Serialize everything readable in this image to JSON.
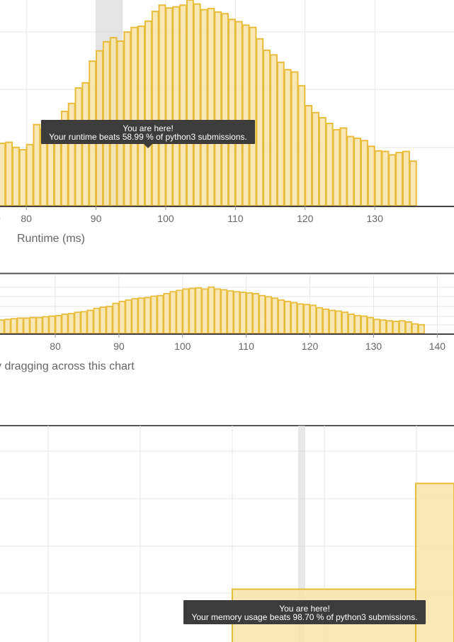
{
  "chart_data": [
    {
      "type": "bar",
      "xlabel": "Runtime (ms)",
      "xlim": [
        75.5,
        136
      ],
      "ylim": [
        0,
        36
      ],
      "highlight_x": 91,
      "colors": {
        "bar_fill": "#f8e3a8",
        "bar_stroke": "#e8bd3c",
        "highlight": "#d8d8d8",
        "grid": "#e6e6e6"
      },
      "x_ticks": [
        80,
        90,
        100,
        110,
        120,
        130
      ],
      "tick_labels": [
        "80",
        "90",
        "100",
        "110",
        "120",
        "130"
      ],
      "x": [
        75.5,
        76.5,
        77.5,
        78.5,
        79.5,
        80.5,
        81.5,
        82.5,
        83.5,
        84.5,
        85.5,
        86.5,
        87.5,
        88.5,
        89.5,
        90.5,
        91.5,
        92.5,
        93.5,
        94.5,
        95.5,
        96.5,
        97.5,
        98.5,
        99.5,
        100.5,
        101.5,
        102.5,
        103.5,
        104.5,
        105.5,
        106.5,
        107.5,
        108.5,
        109.5,
        110.5,
        111.5,
        112.5,
        113.5,
        114.5,
        115.5,
        116.5,
        117.5,
        118.5,
        119.5,
        120.5,
        121.5,
        122.5,
        123.5,
        124.5,
        125.5,
        126.5,
        127.5,
        128.5,
        129.5,
        130.5,
        131.5,
        132.5,
        133.5,
        134.5,
        135.5
      ],
      "values": [
        10.3,
        10.9,
        11.1,
        10.2,
        9.8,
        10.7,
        14.2,
        13.4,
        14.4,
        14.7,
        16.5,
        17.9,
        20.6,
        21.5,
        25.3,
        27.1,
        28.7,
        29.4,
        28.8,
        30.4,
        31.2,
        31.4,
        32.3,
        34.0,
        35.1,
        34.6,
        34.8,
        35.1,
        36.0,
        35.3,
        34.3,
        34.5,
        33.9,
        33.6,
        32.6,
        32.2,
        31.6,
        31.2,
        29.2,
        27.2,
        26.4,
        25.1,
        23.8,
        23.4,
        21.0,
        17.5,
        16.3,
        15.4,
        14.4,
        13.3,
        13.6,
        12.1,
        11.8,
        11.4,
        10.4,
        9.6,
        9.5,
        8.9,
        9.3,
        9.5,
        7.8
      ]
    },
    {
      "type": "bar",
      "x_ticks": [
        80,
        90,
        100,
        110,
        120,
        130,
        140
      ],
      "tick_labels": [
        "80",
        "90",
        "100",
        "110",
        "120",
        "130",
        "140"
      ],
      "xlim": [
        71.2,
        142.5
      ],
      "ylim": [
        0,
        30
      ],
      "caption": "y dragging across this chart",
      "x": [
        71.5,
        72.5,
        73.5,
        74.5,
        75.5,
        76.5,
        77.5,
        78.5,
        79.5,
        80.5,
        81.5,
        82.5,
        83.5,
        84.5,
        85.5,
        86.5,
        87.5,
        88.5,
        89.5,
        90.5,
        91.5,
        92.5,
        93.5,
        94.5,
        95.5,
        96.5,
        97.5,
        98.5,
        99.5,
        100.5,
        101.5,
        102.5,
        103.5,
        104.5,
        105.5,
        106.5,
        107.5,
        108.5,
        109.5,
        110.5,
        111.5,
        112.5,
        113.5,
        114.5,
        115.5,
        116.5,
        117.5,
        118.5,
        119.5,
        120.5,
        121.5,
        122.5,
        123.5,
        124.5,
        125.5,
        126.5,
        127.5,
        128.5,
        129.5,
        130.5,
        131.5,
        132.5,
        133.5,
        134.5,
        135.5,
        136.5,
        137.5
      ],
      "values": [
        6.9,
        7.2,
        7.6,
        7.9,
        7.9,
        8.2,
        8.2,
        8.6,
        8.9,
        9.2,
        9.9,
        10.2,
        10.9,
        11.2,
        11.9,
        12.9,
        13.5,
        13.9,
        15.5,
        16.5,
        17.2,
        17.9,
        18.2,
        18.5,
        19.2,
        19.5,
        20.5,
        21.5,
        22.2,
        22.9,
        23.2,
        23.5,
        22.9,
        23.9,
        22.9,
        22.5,
        21.9,
        21.5,
        21.2,
        20.9,
        20.5,
        19.5,
        18.9,
        18.2,
        17.2,
        16.5,
        15.9,
        15.2,
        14.9,
        14.5,
        13.2,
        12.5,
        11.9,
        11.5,
        10.9,
        9.9,
        9.2,
        8.9,
        8.2,
        7.2,
        6.9,
        6.5,
        6.2,
        6.5,
        5.9,
        4.9,
        4.5
      ]
    },
    {
      "type": "bar",
      "xlim": [
        0,
        641
      ],
      "ylim": [
        0,
        100
      ],
      "highlight_x": 426,
      "bars": [
        {
          "x0": 328,
          "x1": 587,
          "value": 24.4
        },
        {
          "x0": 587,
          "x1": 641,
          "value": 73.3
        }
      ]
    }
  ],
  "tooltips": {
    "runtime": {
      "line1": "You are here!",
      "line2": "Your runtime beats 58.99 % of python3 submissions."
    },
    "memory": {
      "line1": "You are here!",
      "line2": "Your memory usage beats 98.70 % of python3 submissions."
    }
  }
}
